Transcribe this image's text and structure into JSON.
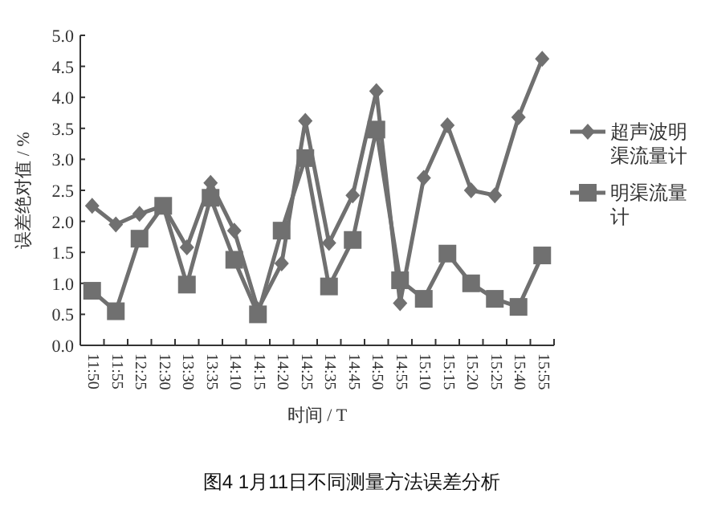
{
  "chart_data": {
    "type": "line",
    "title": "图4 1月11日不同测量方法误差分析",
    "xlabel": "时间 / T",
    "ylabel": "误差绝对值 / %",
    "categories": [
      "11:50",
      "11:55",
      "12:25",
      "12:30",
      "13:30",
      "13:35",
      "14:10",
      "14:15",
      "14:20",
      "14:25",
      "14:35",
      "14:45",
      "14:50",
      "14:55",
      "15:10",
      "15:15",
      "15:20",
      "15:25",
      "15:40",
      "15:55"
    ],
    "series": [
      {
        "name": "超声波明渠流量计",
        "color": "#707070",
        "marker": "diamond",
        "values": [
          2.25,
          1.95,
          2.12,
          2.25,
          1.58,
          2.62,
          1.85,
          0.58,
          1.32,
          3.62,
          1.65,
          2.42,
          4.1,
          0.68,
          2.7,
          3.55,
          2.5,
          2.42,
          3.68,
          4.62
        ]
      },
      {
        "name": "明渠流量计",
        "color": "#707070",
        "marker": "square",
        "values": [
          0.88,
          0.55,
          1.72,
          2.25,
          0.98,
          2.38,
          1.38,
          0.5,
          1.85,
          3.02,
          0.95,
          1.7,
          3.48,
          1.05,
          0.75,
          1.48,
          1.0,
          0.75,
          0.62,
          1.45
        ]
      }
    ],
    "ylim": [
      0,
      5
    ],
    "yticks": [
      {
        "value": 0,
        "label": "0.0"
      },
      {
        "value": 0.5,
        "label": "0.5"
      },
      {
        "value": 1,
        "label": "1.0"
      },
      {
        "value": 1.5,
        "label": "1.5"
      },
      {
        "value": 2,
        "label": "2.0"
      },
      {
        "value": 2.5,
        "label": "2.5"
      },
      {
        "value": 3,
        "label": "3.0"
      },
      {
        "value": 3.5,
        "label": "3.5"
      },
      {
        "value": 4,
        "label": "4.0"
      },
      {
        "value": 4.5,
        "label": "4.5"
      },
      {
        "value": 5,
        "label": "5.0"
      }
    ],
    "legend": "right",
    "line_style": "solid"
  }
}
